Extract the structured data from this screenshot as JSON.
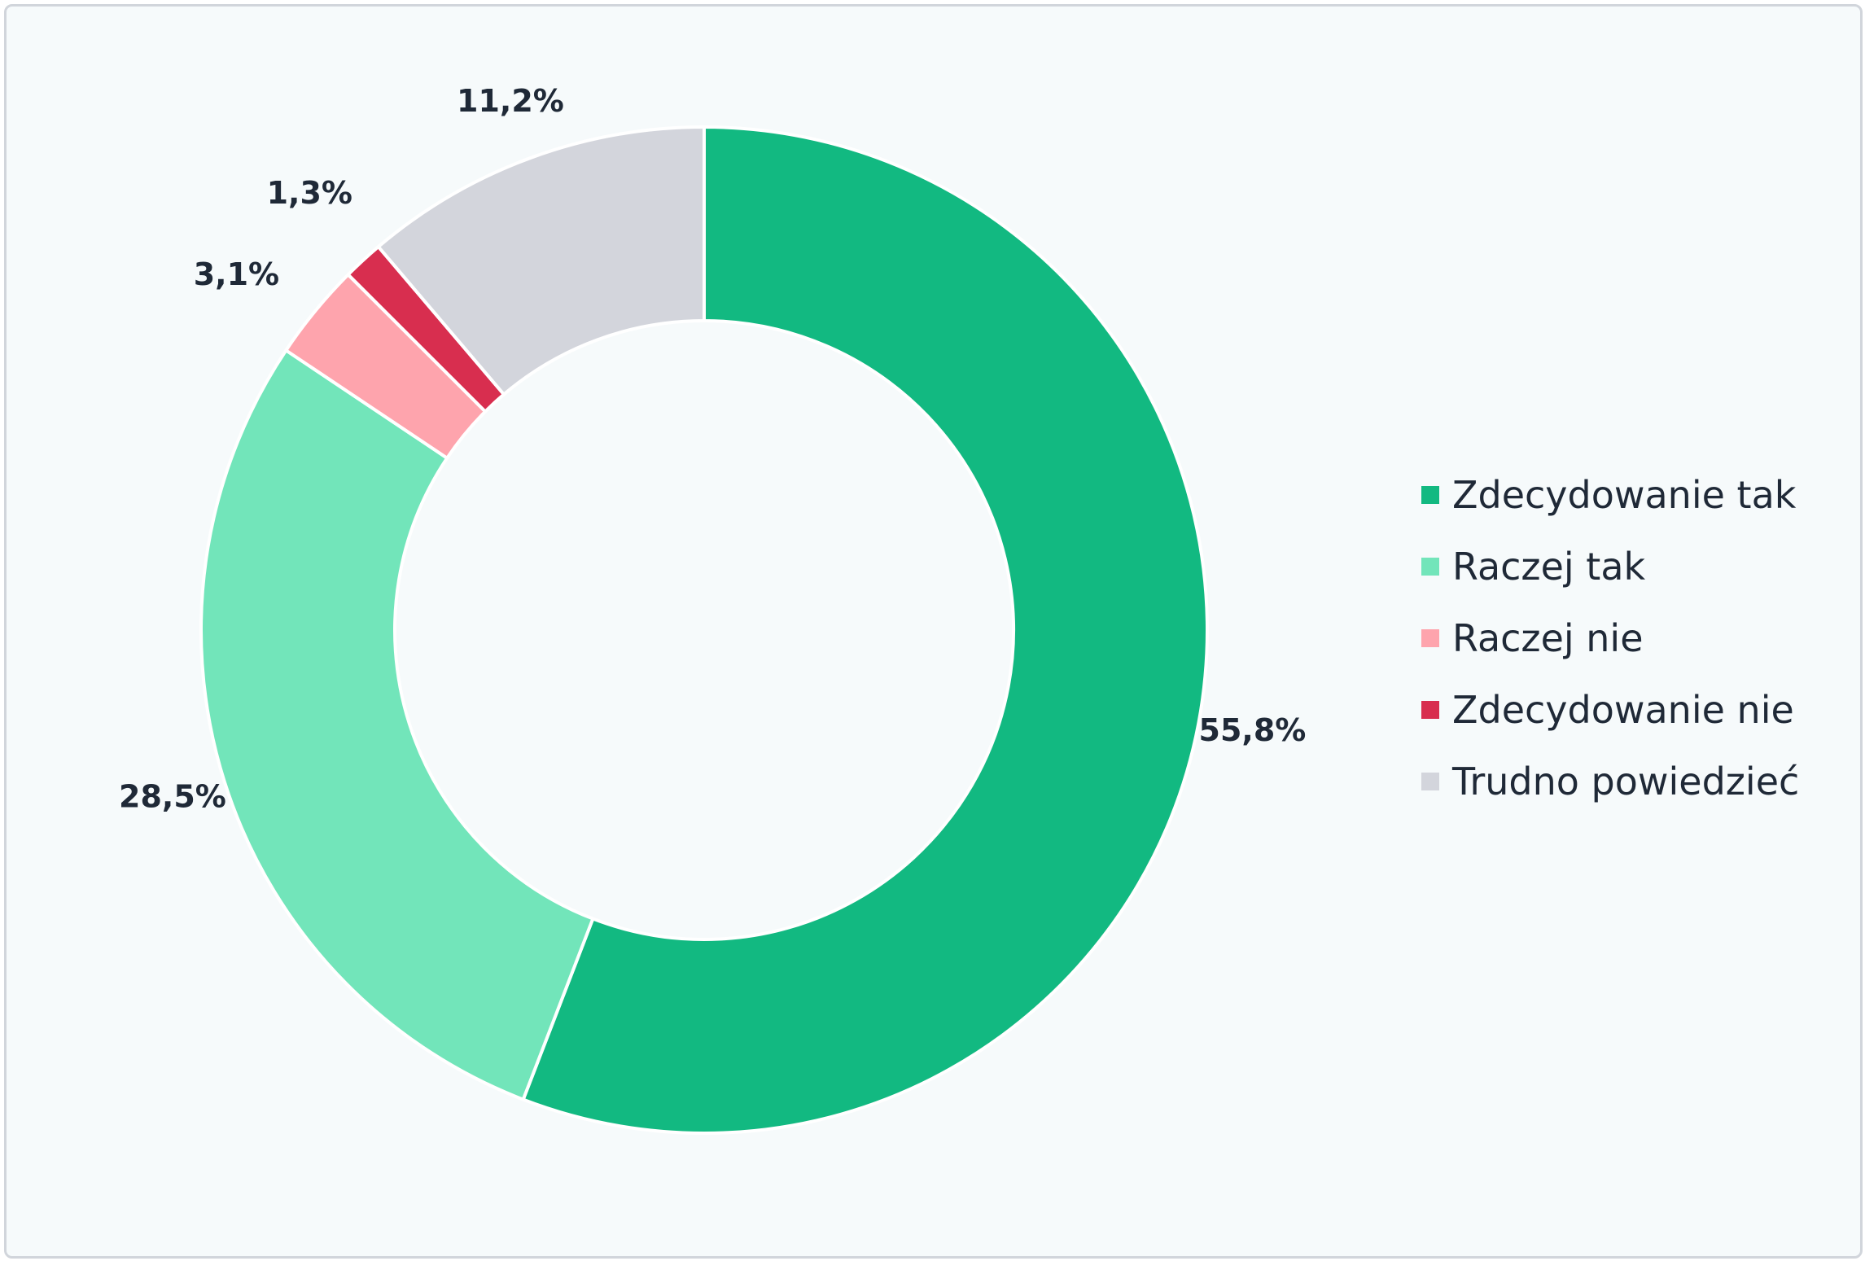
{
  "chart_data": {
    "type": "pie",
    "variant": "donut",
    "title": "",
    "categories": [
      "Zdecydowanie tak",
      "Raczej tak",
      "Raczej nie",
      "Zdecydowanie nie",
      "Trudno powiedzieć"
    ],
    "values": [
      55.8,
      28.5,
      3.1,
      1.3,
      11.2
    ],
    "value_labels": [
      "55,8%",
      "28,5%",
      "3,1%",
      "1,3%",
      "11,2%"
    ],
    "colors": [
      "#12b981",
      "#72e5ba",
      "#fea4ad",
      "#d82e4f",
      "#d3d5dc"
    ],
    "start_angle": "top (12 o'clock)",
    "direction": "clockwise",
    "legend_position": "right",
    "slice_border_color": "#ffffff",
    "background_color": "#f6fafb"
  }
}
